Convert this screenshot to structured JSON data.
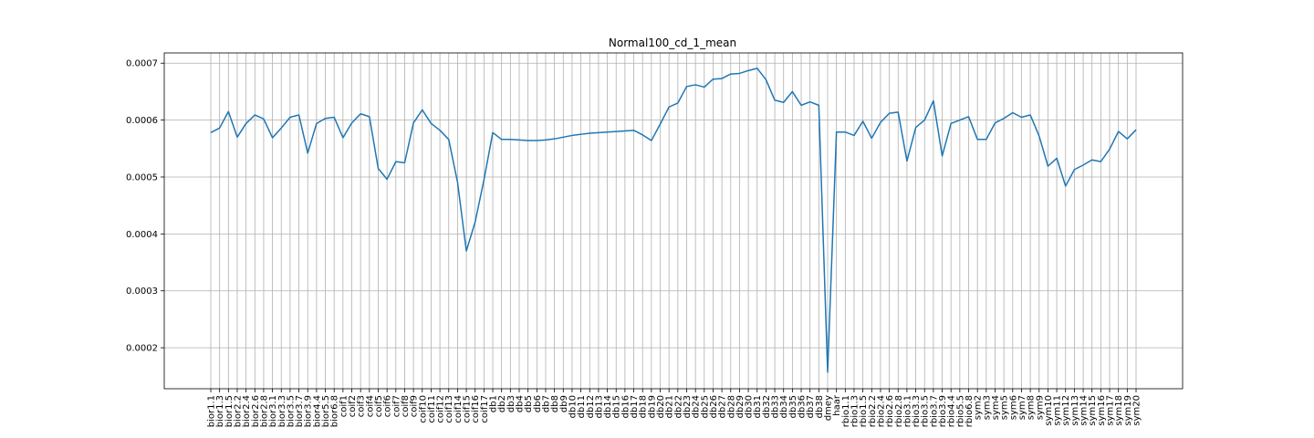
{
  "chart_data": {
    "type": "line",
    "title": "Normal100_cd_1_mean",
    "xlabel": "",
    "ylabel": "",
    "ylim": [
      0.000128,
      0.000718
    ],
    "grid": true,
    "yticks": [
      0.0002,
      0.0003,
      0.0004,
      0.0005,
      0.0006,
      0.0007
    ],
    "ytick_labels": [
      "0.0002",
      "0.0003",
      "0.0004",
      "0.0005",
      "0.0006",
      "0.0007"
    ],
    "categories": [
      "bior1.1",
      "bior1.3",
      "bior1.5",
      "bior2.2",
      "bior2.4",
      "bior2.6",
      "bior2.8",
      "bior3.1",
      "bior3.3",
      "bior3.5",
      "bior3.7",
      "bior3.9",
      "bior4.4",
      "bior5.5",
      "bior6.8",
      "coif1",
      "coif2",
      "coif3",
      "coif4",
      "coif5",
      "coif6",
      "coif7",
      "coif8",
      "coif9",
      "coif10",
      "coif11",
      "coif12",
      "coif13",
      "coif14",
      "coif15",
      "coif16",
      "coif17",
      "db1",
      "db2",
      "db3",
      "db4",
      "db5",
      "db6",
      "db7",
      "db8",
      "db9",
      "db10",
      "db11",
      "db12",
      "db13",
      "db14",
      "db15",
      "db16",
      "db17",
      "db18",
      "db19",
      "db20",
      "db21",
      "db22",
      "db23",
      "db24",
      "db25",
      "db26",
      "db27",
      "db28",
      "db29",
      "db30",
      "db31",
      "db32",
      "db33",
      "db34",
      "db35",
      "db36",
      "db37",
      "db38",
      "dmey",
      "haar",
      "rbio1.1",
      "rbio1.3",
      "rbio1.5",
      "rbio2.2",
      "rbio2.4",
      "rbio2.6",
      "rbio2.8",
      "rbio3.1",
      "rbio3.3",
      "rbio3.5",
      "rbio3.7",
      "rbio3.9",
      "rbio4.4",
      "rbio5.5",
      "rbio6.8",
      "sym2",
      "sym3",
      "sym4",
      "sym5",
      "sym6",
      "sym7",
      "sym8",
      "sym9",
      "sym10",
      "sym11",
      "sym12",
      "sym13",
      "sym14",
      "sym15",
      "sym16",
      "sym17",
      "sym18",
      "sym19",
      "sym20"
    ],
    "series": [
      {
        "name": "",
        "color": "#1f77b4",
        "values": [
          0.000578,
          0.000586,
          0.000615,
          0.00057,
          0.000594,
          0.000609,
          0.000602,
          0.000569,
          0.000586,
          0.000605,
          0.000609,
          0.000542,
          0.000594,
          0.000603,
          0.000605,
          0.000569,
          0.000595,
          0.000611,
          0.000606,
          0.000515,
          0.000496,
          0.000527,
          0.000525,
          0.000595,
          0.000618,
          0.000594,
          0.000582,
          0.000566,
          0.000491,
          0.00037,
          0.000421,
          0.000495,
          0.000578,
          0.000566,
          0.000566,
          0.000565,
          0.000564,
          0.000564,
          0.000565,
          0.000567,
          0.00057,
          0.000573,
          0.000575,
          0.000577,
          0.000578,
          0.000579,
          0.00058,
          0.000581,
          0.000582,
          0.000574,
          0.000564,
          0.000593,
          0.000623,
          0.00063,
          0.000659,
          0.000662,
          0.000658,
          0.000672,
          0.000673,
          0.000681,
          0.000682,
          0.000687,
          0.000691,
          0.000671,
          0.000635,
          0.000631,
          0.00065,
          0.000626,
          0.000632,
          0.000626,
          0.000157,
          0.000579,
          0.000579,
          0.000573,
          0.000598,
          0.000568,
          0.000596,
          0.000612,
          0.000614,
          0.000528,
          0.000587,
          0.0006,
          0.000634,
          0.000537,
          0.000594,
          0.0006,
          0.000606,
          0.000566,
          0.000566,
          0.000595,
          0.000603,
          0.000613,
          0.000605,
          0.000609,
          0.000572,
          0.000519,
          0.000533,
          0.000484,
          0.000513,
          0.000521,
          0.00053,
          0.000527,
          0.000549,
          0.00058,
          0.000567,
          0.000583
        ]
      }
    ]
  }
}
